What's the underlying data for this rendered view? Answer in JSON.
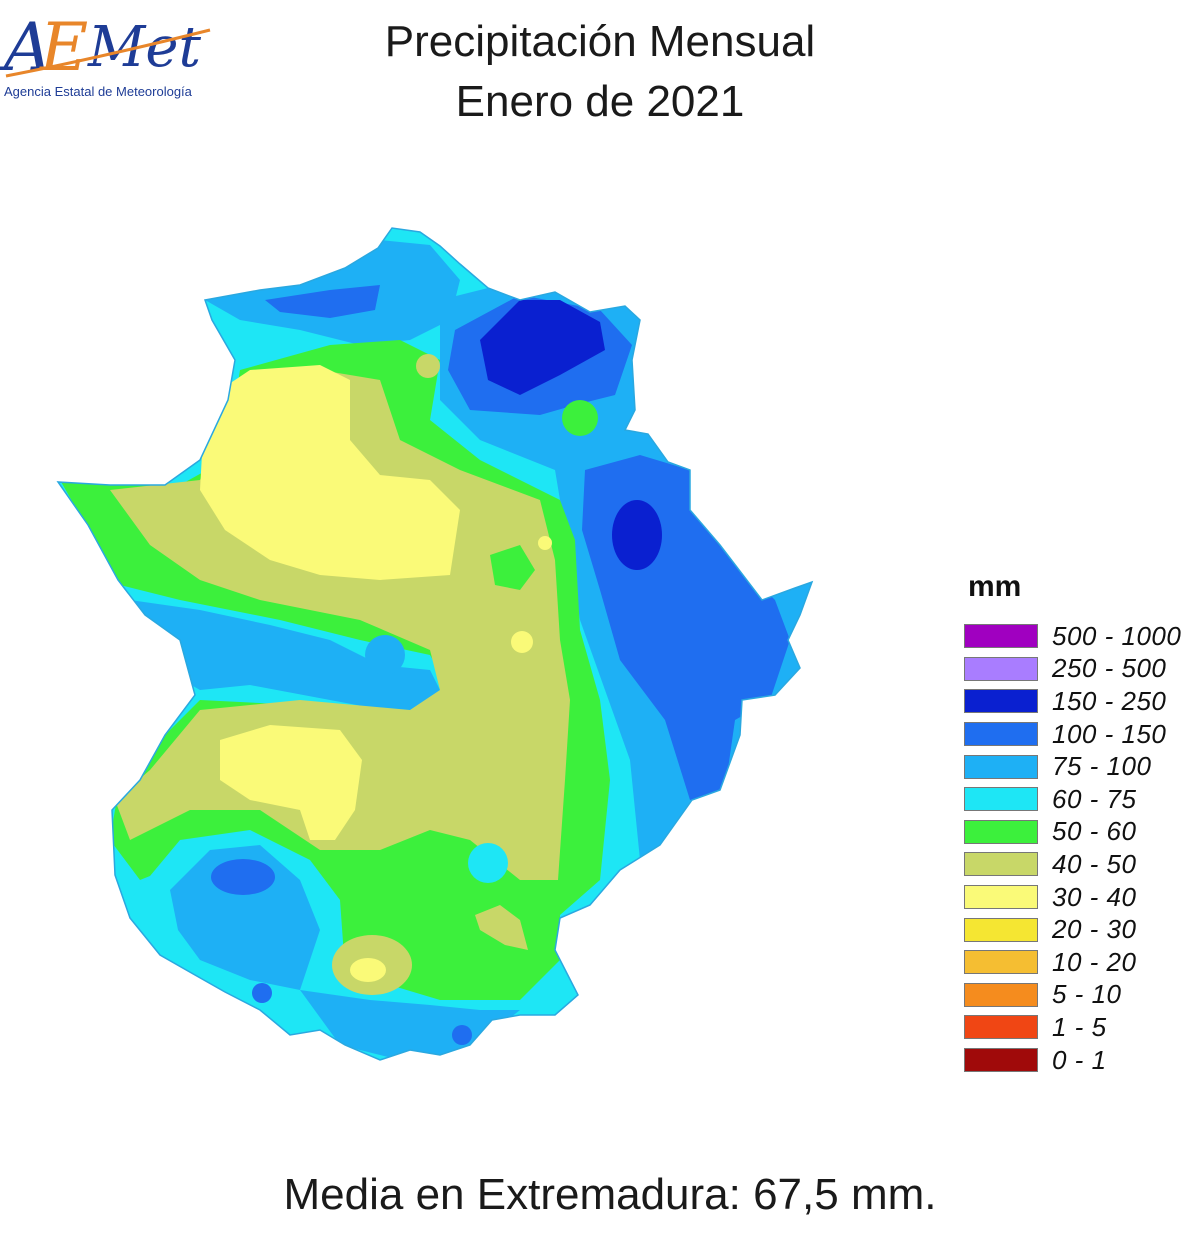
{
  "logo": {
    "brand": "AEMet",
    "subtitle": "Agencia Estatal de Meteorología"
  },
  "title": {
    "line1": "Precipitación Mensual",
    "line2": "Enero de 2021"
  },
  "legend": {
    "unit": "mm",
    "classes": [
      {
        "label": "500 - 1000",
        "color": "#a000c0"
      },
      {
        "label": "250 - 500",
        "color": "#a97dff"
      },
      {
        "label": "150 - 250",
        "color": "#0a20d0"
      },
      {
        "label": "100 - 150",
        "color": "#1f6ef0"
      },
      {
        "label": "75 - 100",
        "color": "#1eb0f5"
      },
      {
        "label": "60 - 75",
        "color": "#1ee6f5"
      },
      {
        "label": "50 - 60",
        "color": "#3cf03c"
      },
      {
        "label": "40 - 50",
        "color": "#c8d768"
      },
      {
        "label": "30 - 40",
        "color": "#fafa78"
      },
      {
        "label": "20 - 30",
        "color": "#f5e632"
      },
      {
        "label": "10 - 20",
        "color": "#f5be32"
      },
      {
        "label": "5 - 10",
        "color": "#f58c1e"
      },
      {
        "label": "1 - 5",
        "color": "#f04614"
      },
      {
        "label": "0 - 1",
        "color": "#a00a0a"
      }
    ]
  },
  "footer": {
    "text": "Media en Extremadura: 67,5 mm."
  }
}
